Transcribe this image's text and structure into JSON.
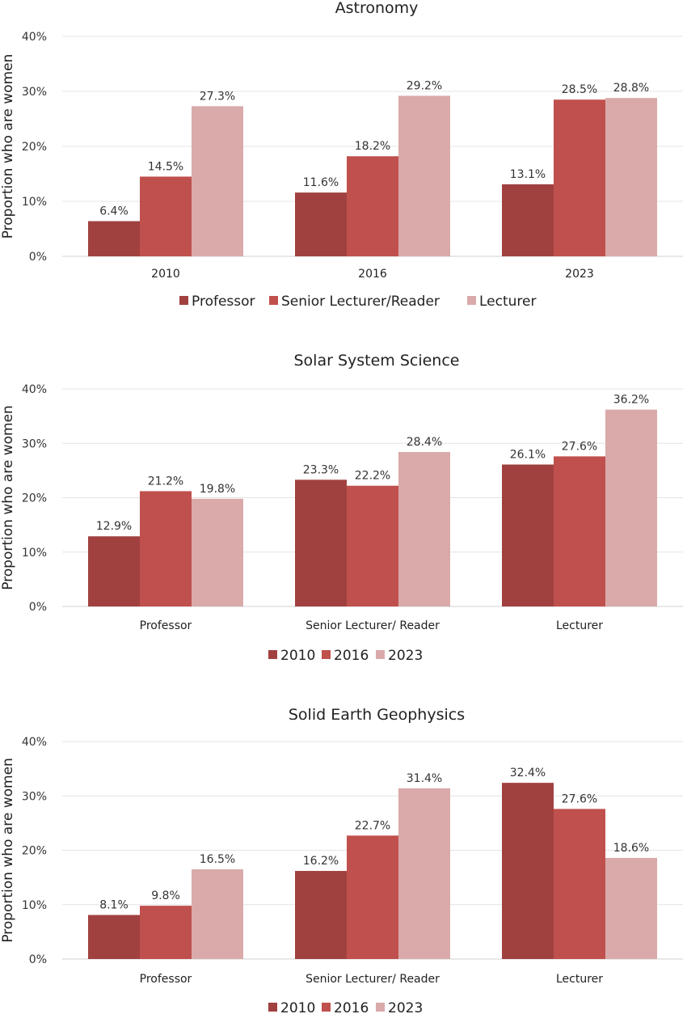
{
  "colors": [
    "#a04140",
    "#c0504d",
    "#d9aaa9"
  ],
  "chart_data": [
    {
      "type": "bar",
      "title": "Astronomy",
      "ylabel": "Proportion who are women",
      "ylim": [
        0,
        40
      ],
      "yticks": [
        "0%",
        "10%",
        "20%",
        "30%",
        "40%"
      ],
      "grid": true,
      "legend_position": "bottom",
      "categories": [
        "2010",
        "2016",
        "2023"
      ],
      "series": [
        {
          "name": "Professor",
          "values": [
            6.4,
            11.6,
            13.1
          ],
          "labels": [
            "6.4%",
            "11.6%",
            "13.1%"
          ]
        },
        {
          "name": "Senior Lecturer/Reader",
          "values": [
            14.5,
            18.2,
            28.5
          ],
          "labels": [
            "14.5%",
            "18.2%",
            "28.5%"
          ]
        },
        {
          "name": "Lecturer",
          "values": [
            27.3,
            29.2,
            28.8
          ],
          "labels": [
            "27.3%",
            "29.2%",
            "28.8%"
          ]
        }
      ]
    },
    {
      "type": "bar",
      "title": "Solar System Science",
      "ylabel": "Proportion who are women",
      "ylim": [
        0,
        40
      ],
      "yticks": [
        "0%",
        "10%",
        "20%",
        "30%",
        "40%"
      ],
      "grid": true,
      "legend_position": "bottom",
      "categories": [
        "Professor",
        "Senior Lecturer/ Reader",
        "Lecturer"
      ],
      "series": [
        {
          "name": "2010",
          "values": [
            12.9,
            23.3,
            26.1
          ],
          "labels": [
            "12.9%",
            "23.3%",
            "26.1%"
          ]
        },
        {
          "name": "2016",
          "values": [
            21.2,
            22.2,
            27.6
          ],
          "labels": [
            "21.2%",
            "22.2%",
            "27.6%"
          ]
        },
        {
          "name": "2023",
          "values": [
            19.8,
            28.4,
            36.2
          ],
          "labels": [
            "19.8%",
            "28.4%",
            "36.2%"
          ]
        }
      ]
    },
    {
      "type": "bar",
      "title": "Solid Earth Geophysics",
      "ylabel": "Proportion who are women",
      "ylim": [
        0,
        40
      ],
      "yticks": [
        "0%",
        "10%",
        "20%",
        "30%",
        "40%"
      ],
      "grid": true,
      "legend_position": "bottom",
      "categories": [
        "Professor",
        "Senior Lecturer/ Reader",
        "Lecturer"
      ],
      "series": [
        {
          "name": "2010",
          "values": [
            8.1,
            16.2,
            32.4
          ],
          "labels": [
            "8.1%",
            "16.2%",
            "32.4%"
          ]
        },
        {
          "name": "2016",
          "values": [
            9.8,
            22.7,
            27.6
          ],
          "labels": [
            "9.8%",
            "22.7%",
            "27.6%"
          ]
        },
        {
          "name": "2023",
          "values": [
            16.5,
            31.4,
            18.6
          ],
          "labels": [
            "16.5%",
            "31.4%",
            "18.6%"
          ]
        }
      ]
    }
  ]
}
